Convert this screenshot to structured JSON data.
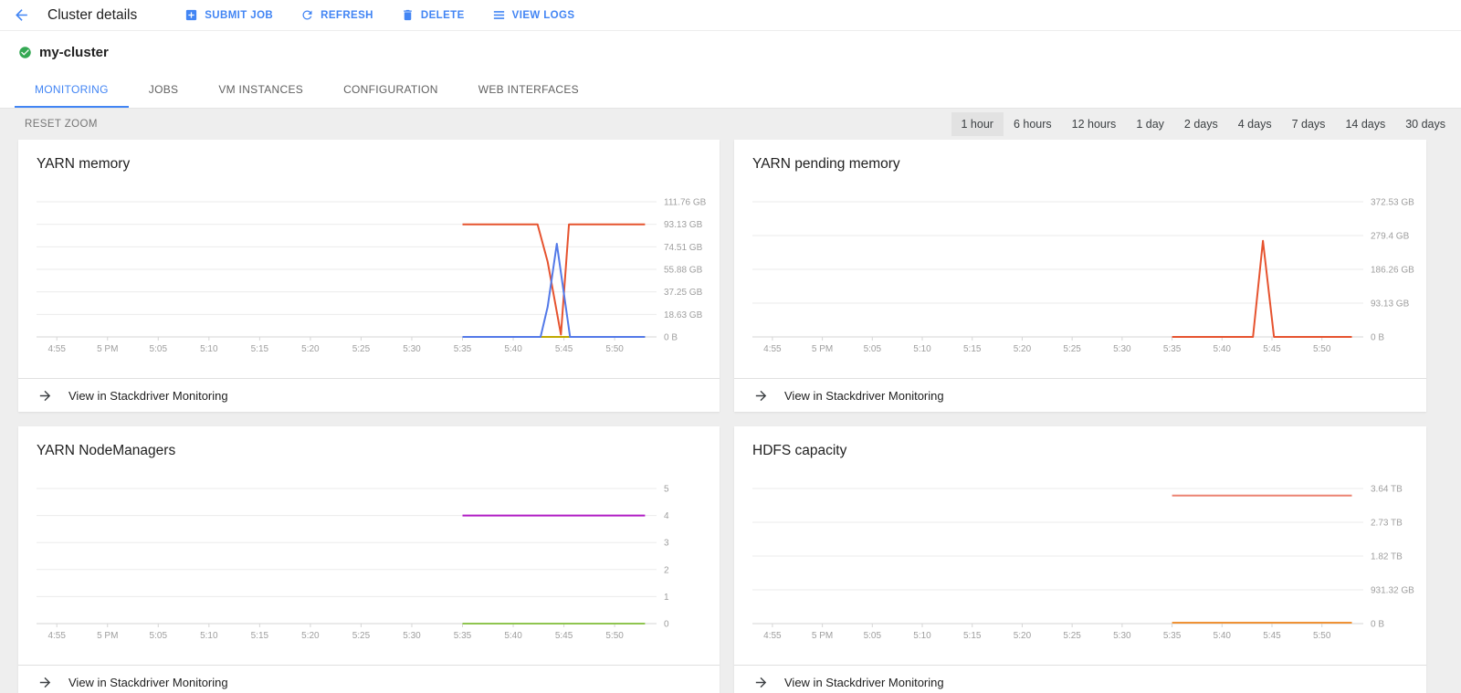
{
  "header": {
    "title": "Cluster details",
    "actions": [
      {
        "label": "SUBMIT JOB",
        "icon": "add-box-icon"
      },
      {
        "label": "REFRESH",
        "icon": "refresh-icon"
      },
      {
        "label": "DELETE",
        "icon": "trash-icon"
      },
      {
        "label": "VIEW LOGS",
        "icon": "view-logs-icon"
      }
    ]
  },
  "cluster": {
    "name": "my-cluster",
    "status": "healthy",
    "status_color": "#34a853"
  },
  "tabs": [
    {
      "label": "MONITORING",
      "active": true
    },
    {
      "label": "JOBS",
      "active": false
    },
    {
      "label": "VM INSTANCES",
      "active": false
    },
    {
      "label": "CONFIGURATION",
      "active": false
    },
    {
      "label": "WEB INTERFACES",
      "active": false
    }
  ],
  "toolbar": {
    "reset_zoom_label": "RESET ZOOM",
    "time_ranges": [
      "1 hour",
      "6 hours",
      "12 hours",
      "1 day",
      "2 days",
      "4 days",
      "7 days",
      "14 days",
      "30 days"
    ],
    "selected_time_range": "1 hour"
  },
  "stackdriver_link_label": "View in Stackdriver Monitoring",
  "colors": {
    "accent_blue": "#4285f4",
    "status_green": "#34a853"
  },
  "chart_data": [
    {
      "type": "line",
      "title": "YARN memory",
      "x_tick_labels": [
        "4:55",
        "5 PM",
        "5:05",
        "5:10",
        "5:15",
        "5:20",
        "5:25",
        "5:30",
        "5:35",
        "5:40",
        "5:45",
        "5:50"
      ],
      "x_tick_minutes": [
        0,
        5,
        10,
        15,
        20,
        25,
        30,
        35,
        40,
        45,
        50,
        55
      ],
      "x_domain_minutes": [
        -2,
        58.5
      ],
      "y_ticks": [
        {
          "value": 111.76,
          "label": "111.76 GB"
        },
        {
          "value": 93.13,
          "label": "93.13 GB"
        },
        {
          "value": 74.51,
          "label": "74.51 GB"
        },
        {
          "value": 55.88,
          "label": "55.88 GB"
        },
        {
          "value": 37.25,
          "label": "37.25 GB"
        },
        {
          "value": 18.63,
          "label": "18.63 GB"
        },
        {
          "value": 0,
          "label": "0 B"
        }
      ],
      "series": [
        {
          "color": "#c0a900",
          "unit": "GB",
          "points": [
            [
              40,
              0
            ],
            [
              58,
              0
            ]
          ]
        },
        {
          "color": "#e6532f",
          "unit": "GB",
          "points": [
            [
              40,
              93.13
            ],
            [
              47.4,
              93.13
            ],
            [
              48.4,
              62
            ],
            [
              49.7,
              2
            ],
            [
              50.5,
              93.13
            ],
            [
              58,
              93.13
            ]
          ]
        },
        {
          "color": "#5379e8",
          "unit": "GB",
          "points": [
            [
              40,
              0
            ],
            [
              47.7,
              0
            ],
            [
              48.4,
              25
            ],
            [
              49.3,
              77
            ],
            [
              50.6,
              0
            ],
            [
              58,
              0
            ]
          ]
        }
      ]
    },
    {
      "type": "line",
      "title": "YARN pending memory",
      "x_tick_labels": [
        "4:55",
        "5 PM",
        "5:05",
        "5:10",
        "5:15",
        "5:20",
        "5:25",
        "5:30",
        "5:35",
        "5:40",
        "5:45",
        "5:50"
      ],
      "x_tick_minutes": [
        0,
        5,
        10,
        15,
        20,
        25,
        30,
        35,
        40,
        45,
        50,
        55
      ],
      "x_domain_minutes": [
        -2,
        58.5
      ],
      "y_ticks": [
        {
          "value": 372.53,
          "label": "372.53 GB"
        },
        {
          "value": 279.4,
          "label": "279.4 GB"
        },
        {
          "value": 186.26,
          "label": "186.26 GB"
        },
        {
          "value": 93.13,
          "label": "93.13 GB"
        },
        {
          "value": 0,
          "label": "0 B"
        }
      ],
      "series": [
        {
          "color": "#e6532f",
          "unit": "GB",
          "points": [
            [
              40,
              0
            ],
            [
              48.1,
              0
            ],
            [
              49.1,
              265
            ],
            [
              50.2,
              0
            ],
            [
              58,
              0
            ]
          ]
        }
      ]
    },
    {
      "type": "line",
      "title": "YARN NodeManagers",
      "x_tick_labels": [
        "4:55",
        "5 PM",
        "5:05",
        "5:10",
        "5:15",
        "5:20",
        "5:25",
        "5:30",
        "5:35",
        "5:40",
        "5:45",
        "5:50"
      ],
      "x_tick_minutes": [
        0,
        5,
        10,
        15,
        20,
        25,
        30,
        35,
        40,
        45,
        50,
        55
      ],
      "x_domain_minutes": [
        -2,
        58.5
      ],
      "y_ticks": [
        {
          "value": 5,
          "label": "5"
        },
        {
          "value": 4,
          "label": "4"
        },
        {
          "value": 3,
          "label": "3"
        },
        {
          "value": 2,
          "label": "2"
        },
        {
          "value": 1,
          "label": "1"
        },
        {
          "value": 0,
          "label": "0"
        }
      ],
      "series": [
        {
          "color": "#b01ec4",
          "unit": "count",
          "points": [
            [
              40,
              4
            ],
            [
              58,
              4
            ]
          ]
        },
        {
          "color": "#8fc550",
          "unit": "count",
          "points": [
            [
              40,
              0
            ],
            [
              58,
              0
            ]
          ]
        }
      ]
    },
    {
      "type": "line",
      "title": "HDFS capacity",
      "x_tick_labels": [
        "4:55",
        "5 PM",
        "5:05",
        "5:10",
        "5:15",
        "5:20",
        "5:25",
        "5:30",
        "5:35",
        "5:40",
        "5:45",
        "5:50"
      ],
      "x_tick_minutes": [
        0,
        5,
        10,
        15,
        20,
        25,
        30,
        35,
        40,
        45,
        50,
        55
      ],
      "x_domain_minutes": [
        -2,
        58.5
      ],
      "y_ticks": [
        {
          "value": 3.64,
          "label": "3.64 TB"
        },
        {
          "value": 2.73,
          "label": "2.73 TB"
        },
        {
          "value": 1.82,
          "label": "1.82 TB"
        },
        {
          "value": 0.91,
          "label": "931.32 GB"
        },
        {
          "value": 0,
          "label": "0 B"
        }
      ],
      "series": [
        {
          "color": "#ec8372",
          "unit": "TB",
          "points": [
            [
              40,
              3.45
            ],
            [
              58,
              3.45
            ]
          ]
        },
        {
          "color": "#ef9235",
          "unit": "TB",
          "points": [
            [
              40,
              0.025
            ],
            [
              58,
              0.025
            ]
          ]
        }
      ]
    }
  ]
}
